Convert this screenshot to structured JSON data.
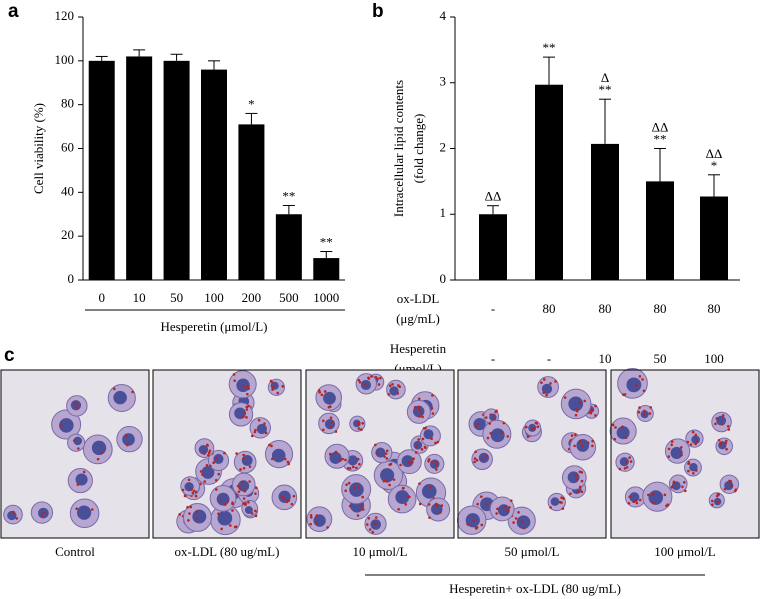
{
  "chart_data": [
    {
      "type": "bar",
      "panel": "a",
      "ylabel": [
        "Cell viability (%)"
      ],
      "xlabel": "Hesperetin (μmol/L)",
      "categories": [
        "0",
        "10",
        "50",
        "100",
        "200",
        "500",
        "1000"
      ],
      "values": [
        100,
        102,
        100,
        96,
        71,
        30,
        10
      ],
      "errors": [
        2,
        3,
        3,
        4,
        5,
        4,
        3
      ],
      "annotations": [
        null,
        null,
        null,
        null,
        [
          "*"
        ],
        [
          "**"
        ],
        [
          "**"
        ]
      ],
      "color": "#000000",
      "ylim": [
        0,
        120
      ],
      "yticks": [
        0,
        20,
        40,
        60,
        80,
        100,
        120
      ]
    },
    {
      "type": "bar",
      "panel": "b",
      "ylabel": [
        "Intracellular lipid contents",
        "(fold change)"
      ],
      "categories": [
        null,
        null,
        null,
        null,
        null
      ],
      "values": [
        1.0,
        2.97,
        2.07,
        1.5,
        1.27
      ],
      "errors": [
        0.13,
        0.42,
        0.68,
        0.5,
        0.33
      ],
      "annotations": [
        [
          "ΔΔ"
        ],
        [
          "**"
        ],
        [
          "Δ",
          "**"
        ],
        [
          "ΔΔ",
          "**"
        ],
        [
          "ΔΔ",
          "*"
        ]
      ],
      "treatments": [
        {
          "label": [
            "ox-LDL",
            "(μg/mL)"
          ],
          "values": [
            "-",
            "80",
            "80",
            "80",
            "80"
          ]
        },
        {
          "label": [
            "Hesperetin",
            "(μmol/L)"
          ],
          "values": [
            "-",
            "-",
            "10",
            "50",
            "100"
          ]
        }
      ],
      "color": "#000000",
      "ylim": [
        0,
        4
      ],
      "yticks": [
        0,
        1,
        2,
        3,
        4
      ]
    }
  ],
  "micrographs": {
    "panel": "c",
    "captions": [
      "Control",
      "ox-LDL (80 ug/mL)",
      "10 μmol/L",
      "50 μmol/L",
      "100 μmol/L"
    ],
    "group_label": "Hesperetin+ ox-LDL (80 ug/mL)"
  }
}
